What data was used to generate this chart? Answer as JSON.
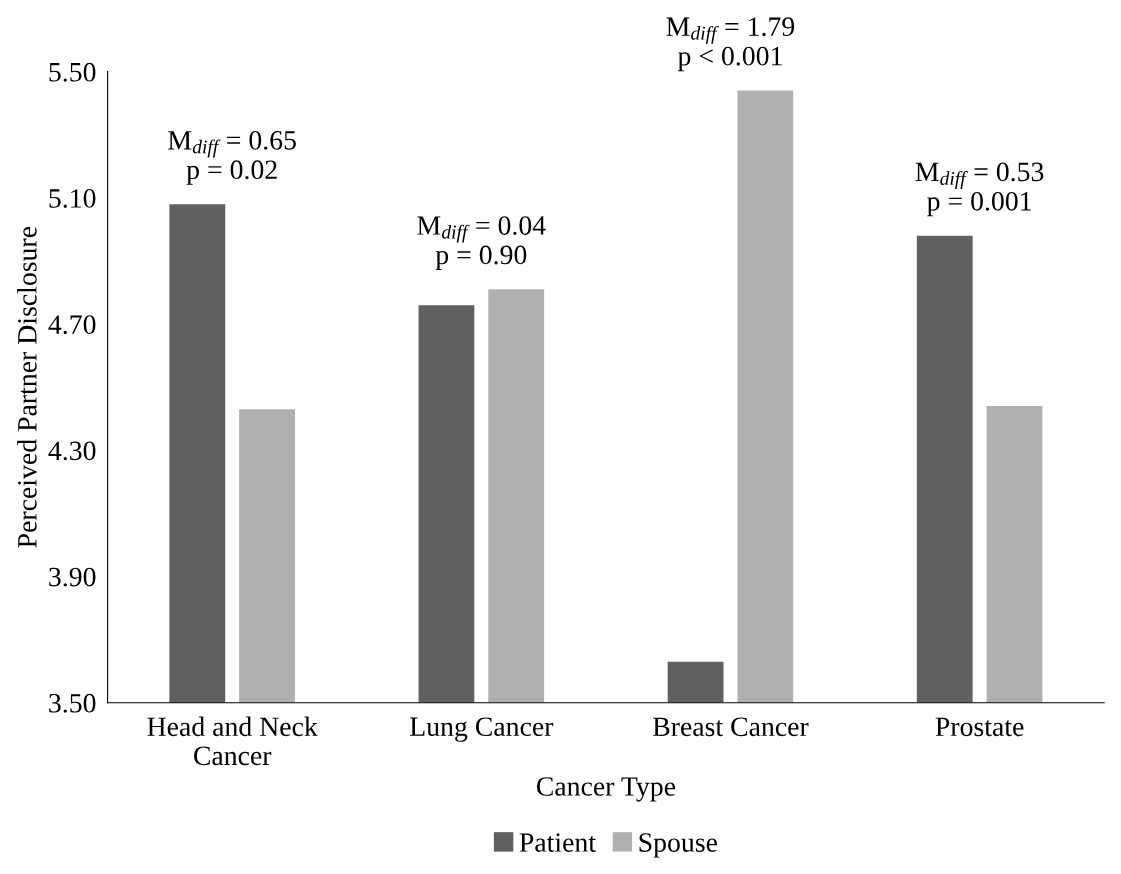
{
  "chart_data": {
    "type": "bar",
    "xlabel": "Cancer Type",
    "ylabel": "Perceived Partner Disclosure",
    "categories": [
      "Head and Neck\nCancer",
      "Lung Cancer",
      "Breast Cancer",
      "Prostate"
    ],
    "series": [
      {
        "name": "Patient",
        "color": "#606060",
        "values": [
          5.08,
          4.76,
          3.63,
          4.98
        ]
      },
      {
        "name": "Spouse",
        "color": "#b0b0b0",
        "values": [
          4.43,
          4.81,
          5.44,
          4.44
        ]
      }
    ],
    "ylim": [
      3.5,
      5.5
    ],
    "yticks": [
      {
        "value": 3.5,
        "label": "3.50"
      },
      {
        "value": 3.9,
        "label": "3.90"
      },
      {
        "value": 4.3,
        "label": "4.30"
      },
      {
        "value": 4.7,
        "label": "4.70"
      },
      {
        "value": 5.1,
        "label": "5.10"
      },
      {
        "value": 5.5,
        "label": "5.50"
      }
    ],
    "annotations": [
      "M$_{diff}$ = 0.65\np = 0.02",
      "M$_{diff}$ = 0.04\np = 0.90",
      "M$_{diff}$ = 1.79\np < 0.001",
      "M$_{diff}$ = 0.53\np = 0.001"
    ],
    "grid": false,
    "legend": "bottom"
  }
}
